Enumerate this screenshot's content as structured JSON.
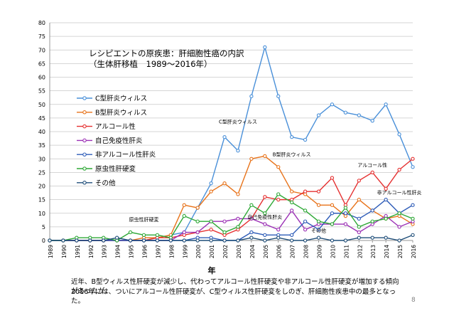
{
  "chart_data": {
    "type": "line",
    "title": "レシピエントの原疾患：肝細胞性癌の内訳",
    "subtitle": "（生体肝移植　1989～2016年）",
    "xlabel": "年",
    "ylabel": "",
    "ylim": [
      0,
      80
    ],
    "yticks": [
      0,
      5,
      10,
      15,
      20,
      25,
      30,
      35,
      40,
      45,
      50,
      55,
      60,
      65,
      70,
      75,
      80
    ],
    "grid": true,
    "legend_position": "top-left",
    "x": [
      "1989",
      "1990",
      "1991",
      "1992",
      "1993",
      "1994",
      "1995",
      "1996",
      "1997",
      "1998",
      "1999",
      "2000",
      "2001",
      "2002",
      "2003",
      "2004",
      "2005",
      "2006",
      "2007",
      "2008",
      "2009",
      "2010",
      "2011",
      "2012",
      "2013",
      "2014",
      "2015",
      "2016"
    ],
    "series": [
      {
        "name": "C型肝炎ウィルス",
        "color": "#4A90D9",
        "marker": "circle",
        "values": [
          0,
          0,
          0,
          0,
          0,
          0,
          0,
          0,
          1,
          2,
          3,
          12,
          21,
          38,
          33,
          53,
          71,
          53,
          38,
          37,
          46,
          50,
          47,
          46,
          44,
          50,
          39,
          27
        ]
      },
      {
        "name": "B型肝炎ウィルス",
        "color": "#E8731A",
        "marker": "circle",
        "values": [
          0,
          0,
          0,
          0,
          0,
          0,
          0,
          1,
          1,
          2,
          13,
          12,
          18,
          21,
          17,
          30,
          31,
          27,
          18,
          17,
          13,
          13,
          9,
          15,
          11,
          8,
          9,
          6
        ]
      },
      {
        "name": "アルコール性",
        "color": "#E53030",
        "marker": "circle",
        "values": [
          0,
          0,
          0,
          0,
          0,
          0,
          0,
          0,
          1,
          1,
          2,
          3,
          4,
          2,
          4,
          8,
          16,
          15,
          15,
          18,
          18,
          23,
          13,
          22,
          25,
          19,
          26,
          30
        ]
      },
      {
        "name": "自己免疫性肝炎",
        "color": "#9B30B5",
        "marker": "circle",
        "values": [
          0,
          0,
          0,
          0,
          0,
          0,
          0,
          0,
          0,
          0,
          3,
          3,
          7,
          7,
          8,
          8,
          6,
          4,
          11,
          4,
          6,
          6,
          6,
          3,
          6,
          9,
          5,
          7
        ]
      },
      {
        "name": "非アルコール性肝炎",
        "color": "#2E5CB8",
        "marker": "circle",
        "values": [
          0,
          0,
          0,
          0,
          0,
          0,
          0,
          0,
          0,
          0,
          0,
          1,
          1,
          0,
          0,
          3,
          2,
          2,
          2,
          7,
          4,
          10,
          10,
          8,
          11,
          15,
          10,
          13
        ]
      },
      {
        "name": "原虫性肝硬変",
        "color": "#2EA836",
        "marker": "circle",
        "values": [
          0,
          0,
          1,
          1,
          1,
          0,
          3,
          2,
          2,
          1,
          9,
          7,
          7,
          3,
          5,
          13,
          10,
          17,
          14,
          11,
          7,
          6,
          12,
          5,
          7,
          8,
          10,
          8
        ]
      },
      {
        "name": "その他",
        "color": "#1F4E79",
        "marker": "circle",
        "values": [
          0,
          0,
          0,
          0,
          0,
          1,
          0,
          0,
          0,
          0,
          0,
          0,
          0,
          0,
          0,
          1,
          0,
          1,
          0,
          0,
          1,
          0,
          0,
          1,
          1,
          1,
          0,
          2
        ]
      }
    ],
    "annotations": [
      {
        "text": "C型肝炎ウィルス",
        "x": "2003",
        "y": 43
      },
      {
        "text": "B型肝炎ウィルス",
        "x": "2007",
        "y": 31
      },
      {
        "text": "アルコール性",
        "x": "2013",
        "y": 27
      },
      {
        "text": "非アルコール性肝炎",
        "x": "2015",
        "y": 17
      },
      {
        "text": "自己免疫性肝炎",
        "x": "2005",
        "y": 8
      },
      {
        "text": "原虫性肝硬変",
        "x": "1996",
        "y": 7
      },
      {
        "text": "その他",
        "x": "2009",
        "y": 3
      }
    ]
  },
  "caption": {
    "line1": "近年、B型ウィルス性肝硬変が減少し、代わってアルコール性肝硬変や非アルコール性肝硬変が増加する傾向があったが、",
    "line2": "2016年には、ついにアルコール性肝硬変が、C型ウィルス性肝硬変をしのぎ、肝細胞性疾患中の最多となった。"
  },
  "page_number": "8"
}
